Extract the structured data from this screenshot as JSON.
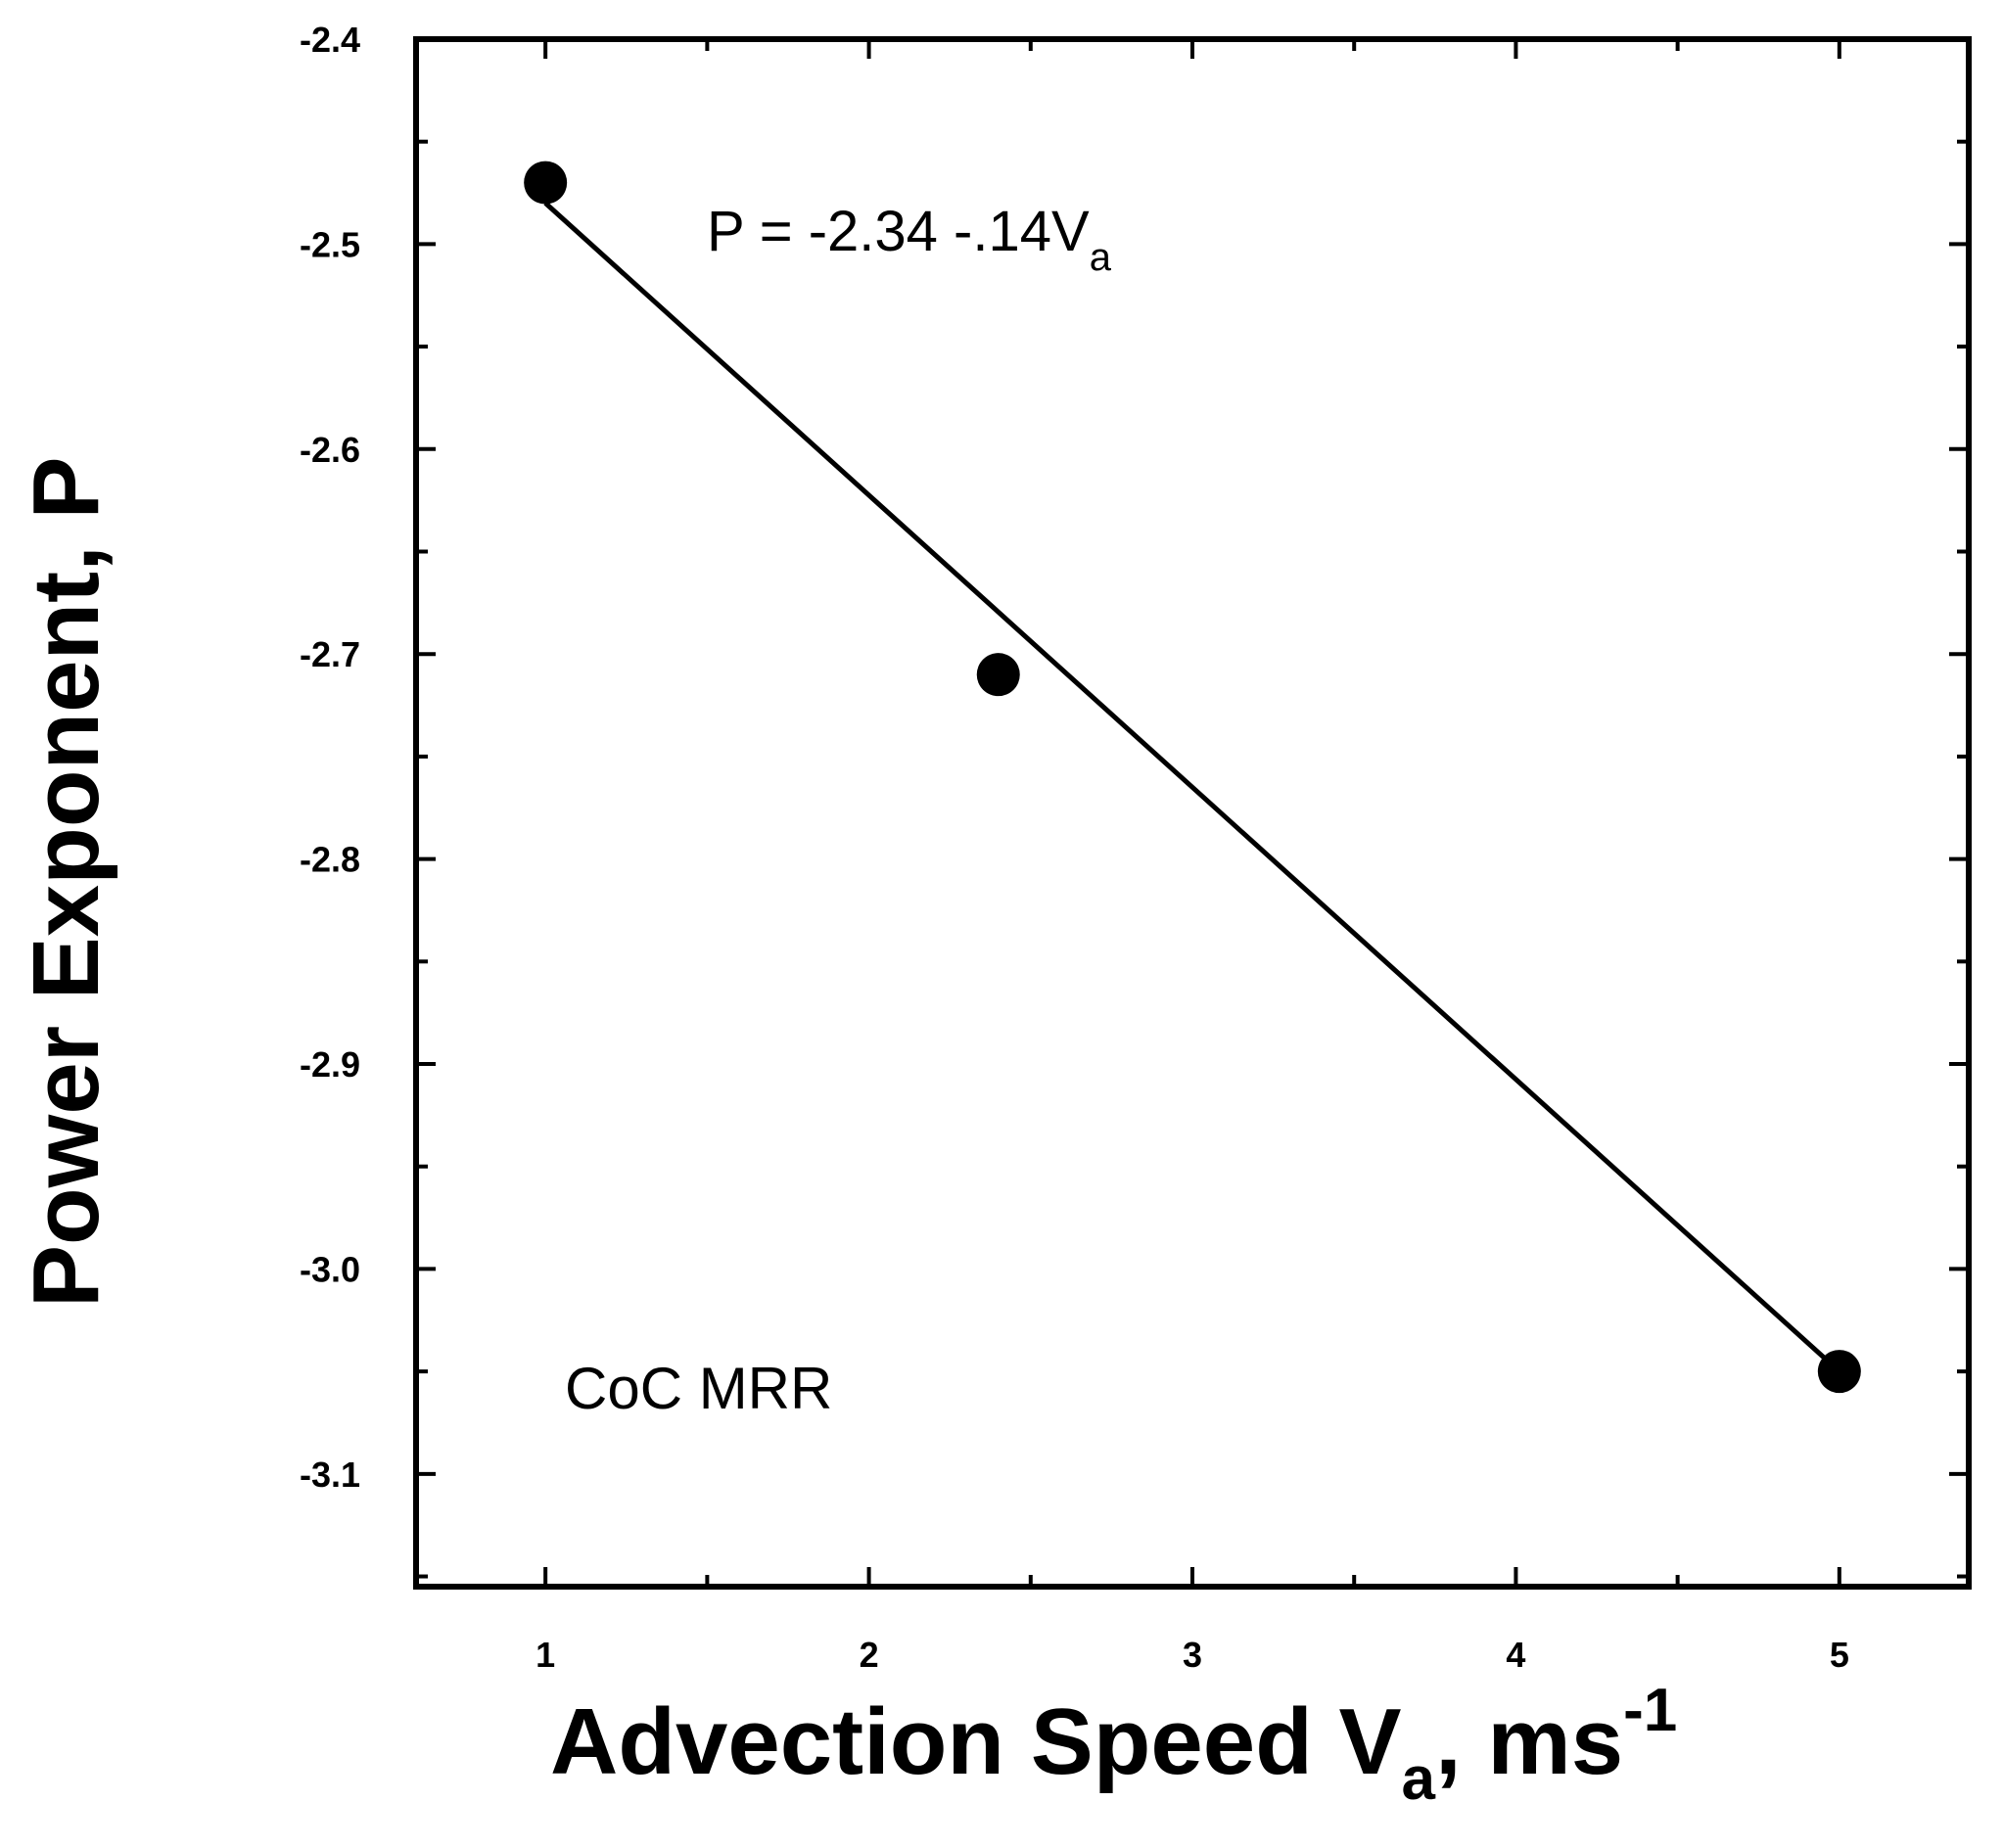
{
  "chart_data": {
    "type": "scatter",
    "title": "",
    "xlabel": {
      "main": "Advection Speed V",
      "sub": "a",
      "unit": ", ms",
      "sup": "-1"
    },
    "ylabel": "Power Exponent, P",
    "xlim": [
      0.6,
      5.4
    ],
    "ylim": [
      -3.155,
      -2.4
    ],
    "x_ticks": [
      1,
      2,
      3,
      4,
      5
    ],
    "x_tick_labels": [
      "1",
      "2",
      "3",
      "4",
      "5"
    ],
    "y_ticks": [
      -2.4,
      -2.5,
      -2.6,
      -2.7,
      -2.8,
      -2.9,
      -3.0,
      -3.1
    ],
    "y_tick_labels": [
      "-2.4",
      "-2.5",
      "-2.6",
      "-2.7",
      "-2.8",
      "-2.9",
      "-3.0",
      "-3.1"
    ],
    "series": [
      {
        "name": "CoC MRR",
        "x": [
          1.0,
          2.4,
          5.0
        ],
        "y": [
          -2.47,
          -2.71,
          -3.05
        ]
      }
    ],
    "fit_line": {
      "x": [
        1.0,
        5.0
      ],
      "y": [
        -2.48,
        -3.05
      ]
    },
    "equation": {
      "main": "P = -2.34 -.14V",
      "sub": "a"
    },
    "dataset_label": "CoC MRR",
    "grid": false
  },
  "colors": {
    "foreground": "#000000",
    "background": "#ffffff"
  }
}
